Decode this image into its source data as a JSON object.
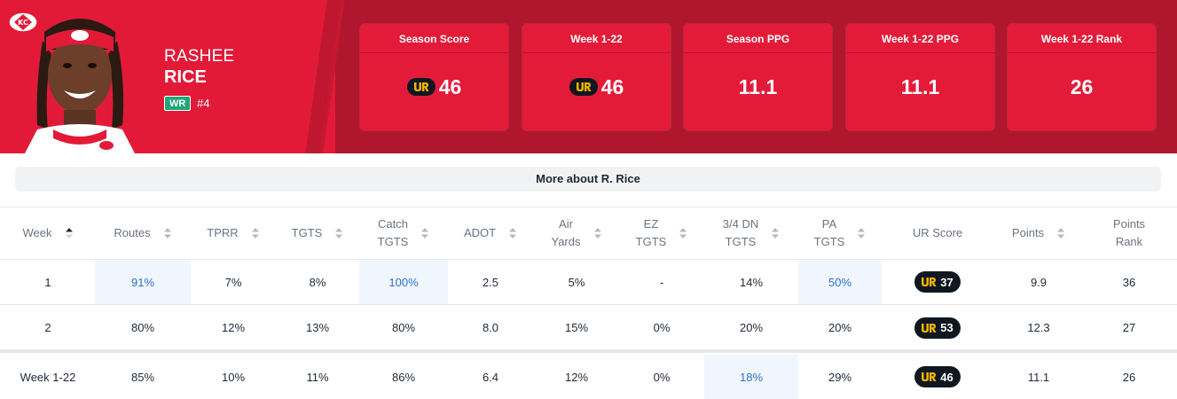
{
  "player": {
    "first_name": "RASHEE",
    "last_name": "RICE",
    "position": "WR",
    "jersey": "#4"
  },
  "stat_cards": [
    {
      "label": "Season Score",
      "value": "46",
      "has_ur_icon": true
    },
    {
      "label": "Week 1-22",
      "value": "46",
      "has_ur_icon": true
    },
    {
      "label": "Season PPG",
      "value": "11.1",
      "has_ur_icon": false
    },
    {
      "label": "Week 1-22 PPG",
      "value": "11.1",
      "has_ur_icon": false
    },
    {
      "label": "Week 1-22 Rank",
      "value": "26",
      "has_ur_icon": false
    }
  ],
  "more_button": {
    "label": "More about R. Rice"
  },
  "table": {
    "headers": [
      {
        "line1": "Week",
        "line2": ""
      },
      {
        "line1": "Routes",
        "line2": ""
      },
      {
        "line1": "TPRR",
        "line2": ""
      },
      {
        "line1": "TGTS",
        "line2": ""
      },
      {
        "line1": "Catch",
        "line2": "TGTS"
      },
      {
        "line1": "ADOT",
        "line2": ""
      },
      {
        "line1": "Air",
        "line2": "Yards"
      },
      {
        "line1": "EZ",
        "line2": "TGTS"
      },
      {
        "line1": "3/4 DN",
        "line2": "TGTS"
      },
      {
        "line1": "PA",
        "line2": "TGTS"
      },
      {
        "line1": "UR Score",
        "line2": ""
      },
      {
        "line1": "Points",
        "line2": ""
      },
      {
        "line1": "Points",
        "line2": "Rank"
      }
    ],
    "rows": [
      {
        "cells": [
          "1",
          "91%",
          "7%",
          "8%",
          "100%",
          "2.5",
          "5%",
          "-",
          "14%",
          "50%",
          "37",
          "9.9",
          "36"
        ],
        "highlight": [
          1,
          4,
          9
        ]
      },
      {
        "cells": [
          "2",
          "80%",
          "12%",
          "13%",
          "80%",
          "8.0",
          "15%",
          "0%",
          "20%",
          "20%",
          "53",
          "12.3",
          "27"
        ],
        "highlight": []
      },
      {
        "cells": [
          "Week 1-22",
          "85%",
          "10%",
          "11%",
          "86%",
          "6.4",
          "12%",
          "0%",
          "18%",
          "29%",
          "46",
          "11.1",
          "26"
        ],
        "highlight": [
          8
        ]
      }
    ]
  },
  "colors": {
    "brand_red": "#e21a38",
    "dark_red": "#b0162d",
    "ur_gold": "#f5b400",
    "highlight_text": "#2f6fd1"
  },
  "icons": [
    "team-logo-icon",
    "ur-logo-icon",
    "sort-icon"
  ]
}
